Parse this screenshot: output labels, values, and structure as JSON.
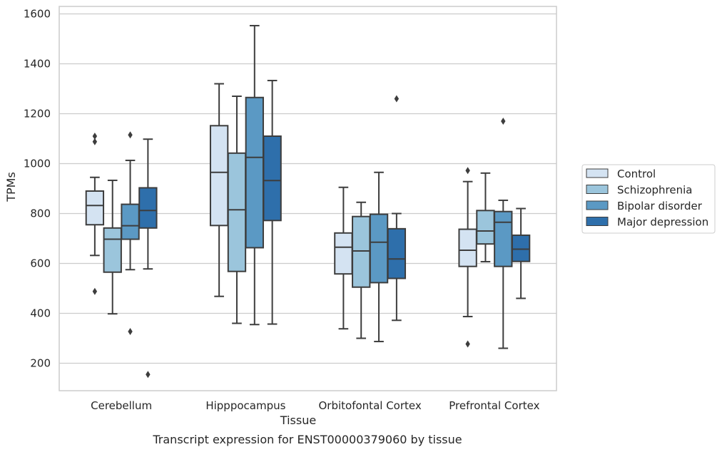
{
  "chart_data": {
    "type": "boxplot",
    "caption": "Transcript expression for ENST00000379060 by tissue",
    "xlabel": "Tissue",
    "ylabel": "TPMs",
    "ylim": [
      90,
      1630
    ],
    "yticks": [
      200,
      400,
      600,
      800,
      1000,
      1200,
      1400,
      1600
    ],
    "grid": true,
    "legend_position": "right",
    "categories": [
      "Cerebellum",
      "Hipppocampus",
      "Orbitofontal Cortex",
      "Prefrontal Cortex"
    ],
    "series": [
      {
        "name": "Control",
        "color": "#d4e3f2",
        "boxes": [
          {
            "whisker_low": 632,
            "q1": 755,
            "median": 832,
            "q3": 890,
            "whisker_high": 945,
            "outliers": [
              1110,
              1088,
              488
            ]
          },
          {
            "whisker_low": 468,
            "q1": 752,
            "median": 965,
            "q3": 1152,
            "whisker_high": 1320,
            "outliers": []
          },
          {
            "whisker_low": 338,
            "q1": 558,
            "median": 665,
            "q3": 722,
            "whisker_high": 905,
            "outliers": []
          },
          {
            "whisker_low": 387,
            "q1": 588,
            "median": 653,
            "q3": 737,
            "whisker_high": 928,
            "outliers": [
              972,
              277
            ]
          }
        ]
      },
      {
        "name": "Schizophrenia",
        "color": "#9bc5dc",
        "boxes": [
          {
            "whisker_low": 398,
            "q1": 565,
            "median": 697,
            "q3": 742,
            "whisker_high": 933,
            "outliers": []
          },
          {
            "whisker_low": 360,
            "q1": 568,
            "median": 815,
            "q3": 1042,
            "whisker_high": 1270,
            "outliers": []
          },
          {
            "whisker_low": 300,
            "q1": 505,
            "median": 650,
            "q3": 788,
            "whisker_high": 845,
            "outliers": []
          },
          {
            "whisker_low": 607,
            "q1": 678,
            "median": 730,
            "q3": 812,
            "whisker_high": 962,
            "outliers": []
          }
        ]
      },
      {
        "name": "Bipolar disorder",
        "color": "#5b99c4",
        "boxes": [
          {
            "whisker_low": 575,
            "q1": 697,
            "median": 751,
            "q3": 837,
            "whisker_high": 1013,
            "outliers": [
              1115,
              327
            ]
          },
          {
            "whisker_low": 355,
            "q1": 663,
            "median": 1025,
            "q3": 1265,
            "whisker_high": 1553,
            "outliers": []
          },
          {
            "whisker_low": 287,
            "q1": 523,
            "median": 685,
            "q3": 797,
            "whisker_high": 965,
            "outliers": []
          },
          {
            "whisker_low": 260,
            "q1": 588,
            "median": 765,
            "q3": 808,
            "whisker_high": 853,
            "outliers": [
              1170
            ]
          }
        ]
      },
      {
        "name": "Major depression",
        "color": "#2e6fab",
        "boxes": [
          {
            "whisker_low": 578,
            "q1": 742,
            "median": 812,
            "q3": 903,
            "whisker_high": 1098,
            "outliers": [
              155
            ]
          },
          {
            "whisker_low": 357,
            "q1": 772,
            "median": 932,
            "q3": 1110,
            "whisker_high": 1333,
            "outliers": []
          },
          {
            "whisker_low": 372,
            "q1": 540,
            "median": 618,
            "q3": 739,
            "whisker_high": 800,
            "outliers": [
              1260
            ]
          },
          {
            "whisker_low": 460,
            "q1": 608,
            "median": 657,
            "q3": 713,
            "whisker_high": 820,
            "outliers": []
          }
        ]
      }
    ]
  }
}
